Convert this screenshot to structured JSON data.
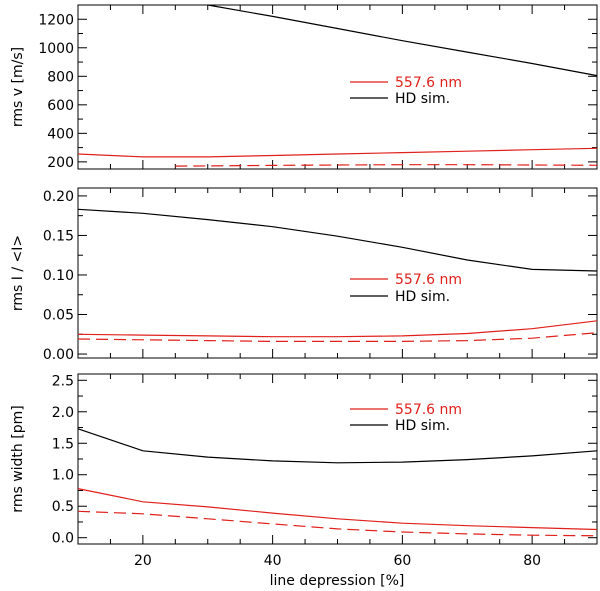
{
  "colors": {
    "obs": "#e0201b",
    "sim": "#000000",
    "axis": "#000000"
  },
  "chart_data": [
    {
      "type": "line",
      "ylabel": "rms v [m/s]",
      "xlim": [
        10,
        90
      ],
      "ylim": [
        150,
        1300
      ],
      "yticks": [
        200,
        400,
        600,
        800,
        1000,
        1200
      ],
      "ytick_labels": [
        "200",
        "400",
        "600",
        "800",
        "1000",
        "1200"
      ],
      "legend": [
        "557.6 nm",
        "HD sim."
      ],
      "series": [
        {
          "name": "HD sim.",
          "role": "sim",
          "style": "solid",
          "x": [
            30,
            40,
            50,
            60,
            70,
            80,
            90
          ],
          "y": [
            1300,
            1220,
            1135,
            1050,
            970,
            890,
            805
          ]
        },
        {
          "name": "557.6 nm",
          "role": "obs",
          "style": "solid",
          "x": [
            10,
            20,
            30,
            40,
            50,
            60,
            70,
            80,
            90
          ],
          "y": [
            255,
            235,
            235,
            245,
            255,
            265,
            275,
            285,
            295
          ]
        },
        {
          "name": "557.6 nm (dashed)",
          "role": "obs",
          "style": "dashed",
          "x": [
            25,
            30,
            40,
            50,
            60,
            70,
            80,
            90
          ],
          "y": [
            170,
            172,
            175,
            178,
            180,
            180,
            178,
            176
          ]
        }
      ]
    },
    {
      "type": "line",
      "ylabel": "rms I / <I>",
      "xlim": [
        10,
        90
      ],
      "ylim": [
        -0.005,
        0.21
      ],
      "yticks": [
        0.0,
        0.05,
        0.1,
        0.15,
        0.2
      ],
      "ytick_labels": [
        "0.00",
        "0.05",
        "0.10",
        "0.15",
        "0.20"
      ],
      "legend": [
        "557.6 nm",
        "HD sim."
      ],
      "series": [
        {
          "name": "HD sim.",
          "role": "sim",
          "style": "solid",
          "x": [
            10,
            20,
            30,
            40,
            50,
            60,
            70,
            80,
            90
          ],
          "y": [
            0.183,
            0.178,
            0.17,
            0.161,
            0.149,
            0.135,
            0.119,
            0.107,
            0.105
          ]
        },
        {
          "name": "557.6 nm",
          "role": "obs",
          "style": "solid",
          "x": [
            10,
            20,
            30,
            40,
            50,
            60,
            70,
            80,
            90
          ],
          "y": [
            0.025,
            0.024,
            0.023,
            0.022,
            0.022,
            0.023,
            0.026,
            0.032,
            0.042
          ]
        },
        {
          "name": "557.6 nm (dashed)",
          "role": "obs",
          "style": "dashed",
          "x": [
            10,
            20,
            30,
            40,
            50,
            60,
            70,
            80,
            90
          ],
          "y": [
            0.019,
            0.018,
            0.017,
            0.016,
            0.016,
            0.016,
            0.017,
            0.02,
            0.027
          ]
        }
      ]
    },
    {
      "type": "line",
      "ylabel": "rms width [pm]",
      "xlabel": "line depression [%]",
      "xlim": [
        10,
        90
      ],
      "ylim": [
        -0.1,
        2.6
      ],
      "yticks": [
        0.0,
        0.5,
        1.0,
        1.5,
        2.0,
        2.5
      ],
      "ytick_labels": [
        "0.0",
        "0.5",
        "1.0",
        "1.5",
        "2.0",
        "2.5"
      ],
      "xticks": [
        20,
        40,
        60,
        80
      ],
      "xtick_labels": [
        "20",
        "40",
        "60",
        "80"
      ],
      "legend": [
        "557.6 nm",
        "HD sim."
      ],
      "series": [
        {
          "name": "HD sim.",
          "role": "sim",
          "style": "solid",
          "x": [
            10,
            20,
            30,
            40,
            50,
            60,
            70,
            80,
            90
          ],
          "y": [
            1.73,
            1.38,
            1.28,
            1.22,
            1.19,
            1.2,
            1.24,
            1.3,
            1.38
          ]
        },
        {
          "name": "557.6 nm",
          "role": "obs",
          "style": "solid",
          "x": [
            10,
            20,
            30,
            40,
            50,
            60,
            70,
            80,
            90
          ],
          "y": [
            0.78,
            0.57,
            0.49,
            0.39,
            0.3,
            0.23,
            0.19,
            0.16,
            0.13
          ]
        },
        {
          "name": "557.6 nm (dashed)",
          "role": "obs",
          "style": "dashed",
          "x": [
            10,
            20,
            30,
            40,
            50,
            60,
            70,
            80,
            90
          ],
          "y": [
            0.42,
            0.38,
            0.3,
            0.22,
            0.14,
            0.09,
            0.06,
            0.04,
            0.03
          ]
        }
      ]
    }
  ]
}
